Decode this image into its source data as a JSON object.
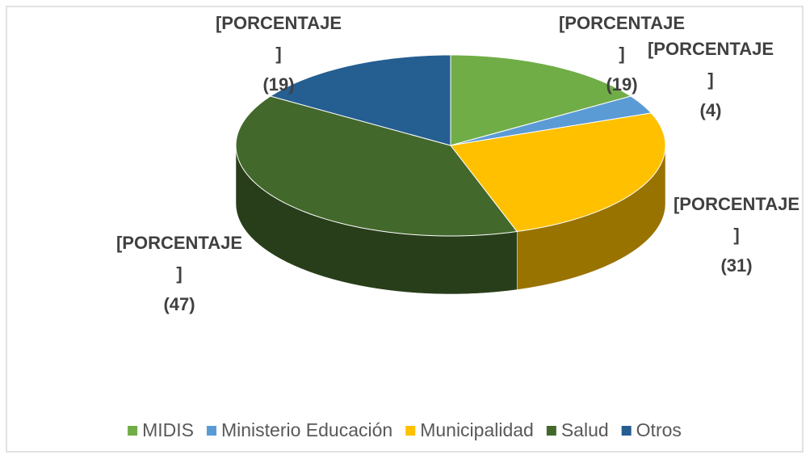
{
  "chart_data": {
    "type": "pie3d",
    "categories": [
      "MIDIS",
      "Ministerio Educación",
      "Municipalidad",
      "Salud",
      "Otros"
    ],
    "values": [
      19,
      4,
      31,
      47,
      19
    ],
    "value_labels": [
      "(19)",
      "(4)",
      "(31)",
      "(47)",
      "(19)"
    ],
    "label_placeholder_lines": [
      "[PORCENTAJE",
      "]"
    ],
    "colors": [
      "#70ad47",
      "#5b9bd5",
      "#ffc000",
      "#43682b",
      "#255e91"
    ],
    "legend": "bottom"
  }
}
